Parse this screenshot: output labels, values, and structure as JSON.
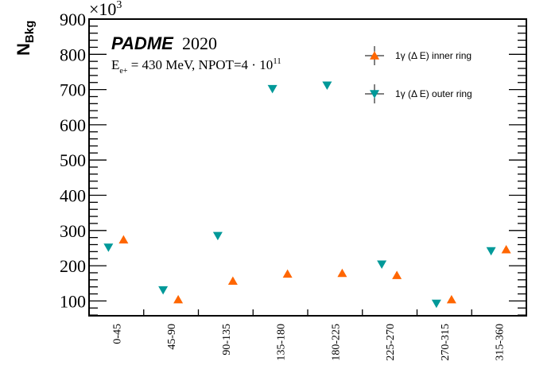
{
  "chart_data": {
    "type": "scatter",
    "title": "",
    "experiment_label": "PADME",
    "year_label": "2020",
    "beam_label": "E",
    "beam_sub": "e+",
    "beam_rest": " = 430 MeV, NPOT=4 · 10",
    "beam_exp": "11",
    "ylabel": "N",
    "ylabel_sub": "Bkg",
    "y_multiplier": "×10",
    "y_multiplier_exp": "3",
    "xlabel": "",
    "ylim": [
      58,
      900
    ],
    "yticks": [
      "100",
      "200",
      "300",
      "400",
      "500",
      "600",
      "700",
      "800",
      "900"
    ],
    "categories": [
      "0-45",
      "45-90",
      "90-135",
      "135-180",
      "180-225",
      "225-270",
      "270-315",
      "315-360"
    ],
    "series": [
      {
        "name": "1γ (Δ E) inner ring",
        "color": "#ff6600",
        "marker": "triangle-up",
        "values": [
          274,
          104,
          157,
          177,
          179,
          173,
          104,
          246
        ]
      },
      {
        "name": "1γ (Δ E) outer ring",
        "color": "#009999",
        "marker": "triangle-down",
        "values": [
          252,
          131,
          285,
          702,
          712,
          204,
          93,
          242
        ]
      }
    ],
    "legend_position": "top-right",
    "grid": false
  }
}
